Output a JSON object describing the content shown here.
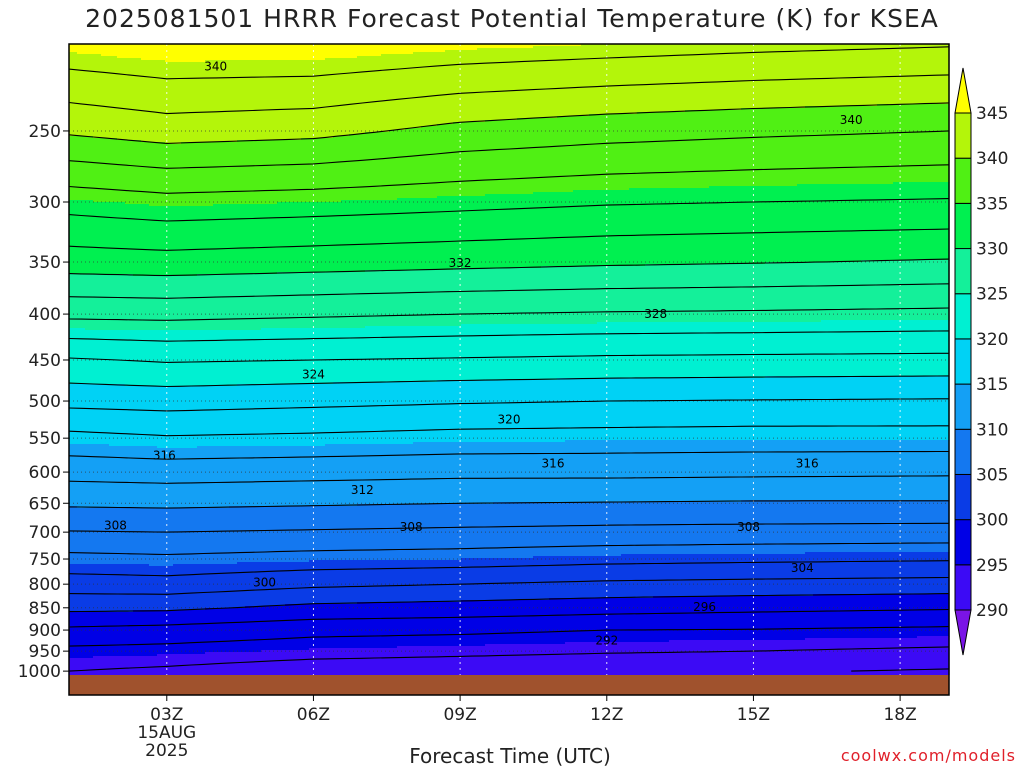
{
  "title": "2025081501 HRRR Forecast Potential Temperature (K) for KSEA",
  "xlabel": "Forecast Time (UTC)",
  "credit": "coolwx.com/models",
  "chart_data": {
    "type": "heatmap",
    "title": "2025081501 HRRR Forecast Potential Temperature (K) for KSEA",
    "xlabel": "Forecast Time (UTC)",
    "ylabel": "",
    "x_ticks": [
      {
        "hour": 3,
        "label": "03Z",
        "sub": [
          "15AUG",
          "2025"
        ]
      },
      {
        "hour": 6,
        "label": "06Z"
      },
      {
        "hour": 9,
        "label": "09Z"
      },
      {
        "hour": 12,
        "label": "12Z"
      },
      {
        "hour": 15,
        "label": "15Z"
      },
      {
        "hour": 18,
        "label": "18Z"
      }
    ],
    "xlim": [
      1,
      19
    ],
    "y_ticks": [
      250,
      300,
      350,
      400,
      450,
      500,
      550,
      600,
      650,
      700,
      750,
      800,
      850,
      900,
      950,
      1000
    ],
    "ylim": [
      1010,
      200
    ],
    "ylog": true,
    "grid": true,
    "colorbar": {
      "levels": [
        290,
        295,
        300,
        305,
        310,
        315,
        320,
        325,
        330,
        335,
        340,
        345
      ],
      "colors": [
        "#7a14e6",
        "#3c0af5",
        "#0000e6",
        "#0a3ce6",
        "#1478f0",
        "#14a0f5",
        "#00d2f5",
        "#00f0d2",
        "#14f09a",
        "#00f050",
        "#50f014",
        "#b4f50a",
        "#ffff00"
      ],
      "labels": [
        "290",
        "295",
        "300",
        "305",
        "310",
        "315",
        "320",
        "325",
        "330",
        "335",
        "340",
        "345"
      ]
    },
    "profiles": [
      {
        "hour": 1,
        "p": [
          1000,
          950,
          900,
          850,
          800,
          750,
          700,
          650,
          600,
          550,
          500,
          450,
          400,
          350,
          300,
          250,
          200
        ],
        "theta": [
          294,
          295.5,
          297.6,
          300.5,
          303,
          305.4,
          307.9,
          310.3,
          312.7,
          315.4,
          318.6,
          321.8,
          326.5,
          331,
          334.8,
          340.3,
          345.5
        ]
      },
      {
        "hour": 3,
        "p": [
          1000,
          950,
          900,
          850,
          800,
          750,
          700,
          650,
          600,
          550,
          500,
          450,
          400,
          350,
          300,
          250,
          200
        ],
        "theta": [
          293.6,
          295.3,
          297.3,
          300.4,
          303.2,
          305.6,
          308,
          310.4,
          312.9,
          315.8,
          318.8,
          322.2,
          326.6,
          331.2,
          335.3,
          341,
          346
        ]
      },
      {
        "hour": 6,
        "p": [
          1000,
          950,
          900,
          850,
          800,
          750,
          700,
          650,
          600,
          550,
          500,
          450,
          400,
          350,
          300,
          250,
          200
        ],
        "theta": [
          292.8,
          294.8,
          296.6,
          299.5,
          302.4,
          305.2,
          307.8,
          310.2,
          312.7,
          315.6,
          318.5,
          322,
          326.3,
          330.9,
          335,
          340.6,
          346
        ]
      },
      {
        "hour": 9,
        "p": [
          1000,
          950,
          900,
          850,
          800,
          750,
          700,
          650,
          600,
          550,
          500,
          450,
          400,
          350,
          300,
          250,
          200
        ],
        "theta": [
          292.6,
          294.5,
          296.4,
          299.2,
          302,
          305,
          307.6,
          310,
          312.5,
          315.3,
          318.2,
          321.8,
          326,
          330.6,
          334.6,
          339.4,
          345.4
        ]
      },
      {
        "hour": 12,
        "p": [
          1000,
          950,
          900,
          850,
          800,
          750,
          700,
          650,
          600,
          550,
          500,
          450,
          400,
          350,
          300,
          250,
          200
        ],
        "theta": [
          292.3,
          294.2,
          296,
          298.8,
          301.6,
          304.6,
          307.4,
          309.9,
          312.5,
          315.2,
          318,
          321.6,
          325.8,
          330.3,
          334.2,
          338.8,
          345
        ]
      },
      {
        "hour": 15,
        "p": [
          1000,
          950,
          900,
          850,
          800,
          750,
          700,
          650,
          600,
          550,
          500,
          450,
          400,
          350,
          300,
          250,
          200
        ],
        "theta": [
          292.2,
          294,
          295.9,
          298.5,
          301.4,
          304.4,
          307.3,
          309.8,
          312.4,
          315.1,
          317.9,
          321.5,
          325.7,
          330.1,
          334,
          338.4,
          344.6
        ]
      },
      {
        "hour": 19,
        "p": [
          1000,
          950,
          900,
          850,
          800,
          750,
          700,
          650,
          600,
          550,
          500,
          450,
          400,
          350,
          300,
          250,
          200
        ],
        "theta": [
          291.8,
          293.6,
          295.6,
          298.2,
          301.2,
          304.2,
          307.2,
          309.8,
          312.3,
          315.1,
          317.8,
          321.4,
          325.5,
          329.8,
          333.8,
          338,
          344.2
        ]
      }
    ],
    "contour_labels": [
      {
        "value": "340",
        "hour": 4.0,
        "p": 212
      },
      {
        "value": "340",
        "hour": 17.0,
        "p": 243
      },
      {
        "value": "332",
        "hour": 9.0,
        "p": 351
      },
      {
        "value": "328",
        "hour": 13.0,
        "p": 400
      },
      {
        "value": "324",
        "hour": 6.0,
        "p": 467
      },
      {
        "value": "320",
        "hour": 10.0,
        "p": 524
      },
      {
        "value": "316",
        "hour": 2.95,
        "p": 575
      },
      {
        "value": "316",
        "hour": 10.9,
        "p": 587
      },
      {
        "value": "316",
        "hour": 16.1,
        "p": 587
      },
      {
        "value": "312",
        "hour": 7.0,
        "p": 628
      },
      {
        "value": "308",
        "hour": 1.95,
        "p": 688
      },
      {
        "value": "308",
        "hour": 8.0,
        "p": 691
      },
      {
        "value": "308",
        "hour": 14.9,
        "p": 691
      },
      {
        "value": "304",
        "hour": 16.0,
        "p": 767
      },
      {
        "value": "300",
        "hour": 5.0,
        "p": 797
      },
      {
        "value": "296",
        "hour": 14.0,
        "p": 848
      },
      {
        "value": "292",
        "hour": 12.0,
        "p": 925
      }
    ]
  }
}
